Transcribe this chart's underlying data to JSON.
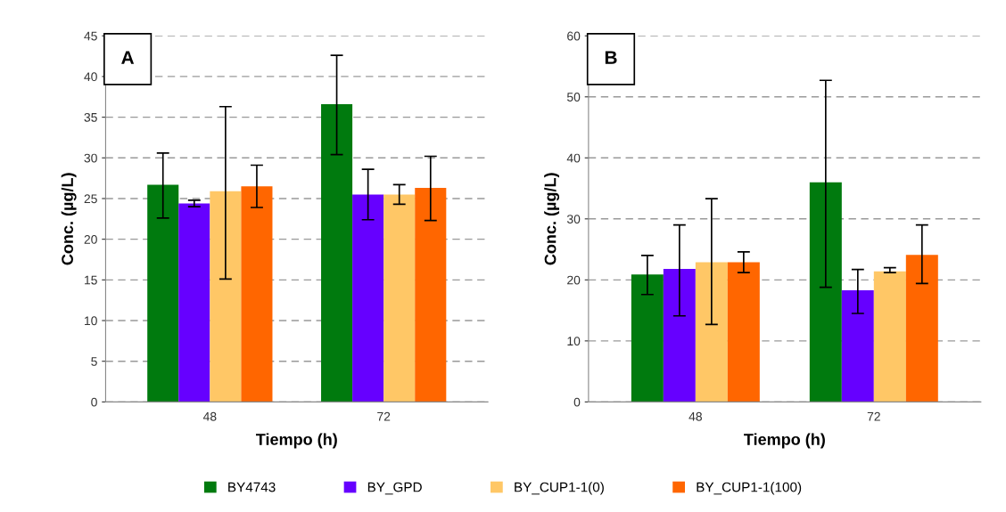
{
  "chart_data": [
    {
      "type": "bar",
      "categories": [
        "48",
        "72"
      ],
      "xlabel": "Tiempo (h)",
      "ylabel": "Conc. (µg/L)",
      "ylim": [
        0,
        45
      ],
      "yticks": [
        0,
        5,
        10,
        15,
        20,
        25,
        30,
        35,
        40,
        45
      ],
      "grid": "y",
      "legend": "bottom",
      "annotations": [
        "A"
      ],
      "series": [
        {
          "name": "BY4743",
          "color": "#007a0e",
          "values": [
            26.7,
            36.6
          ],
          "errors": [
            [
              22.6,
              30.6
            ],
            [
              30.4,
              42.6
            ]
          ]
        },
        {
          "name": "BY_GPD",
          "color": "#6600ff",
          "values": [
            24.4,
            25.5
          ],
          "errors": [
            [
              24.0,
              24.8
            ],
            [
              22.4,
              28.6
            ]
          ]
        },
        {
          "name": "BY_CUP1-1(0)",
          "color": "#ffc766",
          "values": [
            25.9,
            25.5
          ],
          "errors": [
            [
              15.1,
              36.3
            ],
            [
              24.3,
              26.7
            ]
          ]
        },
        {
          "name": "BY_CUP1-1(100)",
          "color": "#ff6600",
          "values": [
            26.5,
            26.3
          ],
          "errors": [
            [
              23.9,
              29.1
            ],
            [
              22.3,
              30.2
            ]
          ]
        }
      ]
    },
    {
      "type": "bar",
      "categories": [
        "48",
        "72"
      ],
      "xlabel": "Tiempo (h)",
      "ylabel": "Conc. (µg/L)",
      "ylim": [
        0,
        60
      ],
      "yticks": [
        0,
        10,
        20,
        30,
        40,
        50,
        60
      ],
      "grid": "y",
      "legend": "bottom",
      "annotations": [
        "B"
      ],
      "series": [
        {
          "name": "BY4743",
          "color": "#007a0e",
          "values": [
            20.9,
            36.0
          ],
          "errors": [
            [
              17.6,
              24.0
            ],
            [
              18.8,
              52.7
            ]
          ]
        },
        {
          "name": "BY_GPD",
          "color": "#6600ff",
          "values": [
            21.8,
            18.3
          ],
          "errors": [
            [
              14.1,
              29.0
            ],
            [
              14.5,
              21.7
            ]
          ]
        },
        {
          "name": "BY_CUP1-1(0)",
          "color": "#ffc766",
          "values": [
            22.9,
            21.4
          ],
          "errors": [
            [
              12.7,
              33.3
            ],
            [
              21.2,
              22.0
            ]
          ]
        },
        {
          "name": "BY_CUP1-1(100)",
          "color": "#ff6600",
          "values": [
            22.9,
            24.1
          ],
          "errors": [
            [
              21.2,
              24.6
            ],
            [
              19.4,
              29.0
            ]
          ]
        }
      ]
    }
  ]
}
